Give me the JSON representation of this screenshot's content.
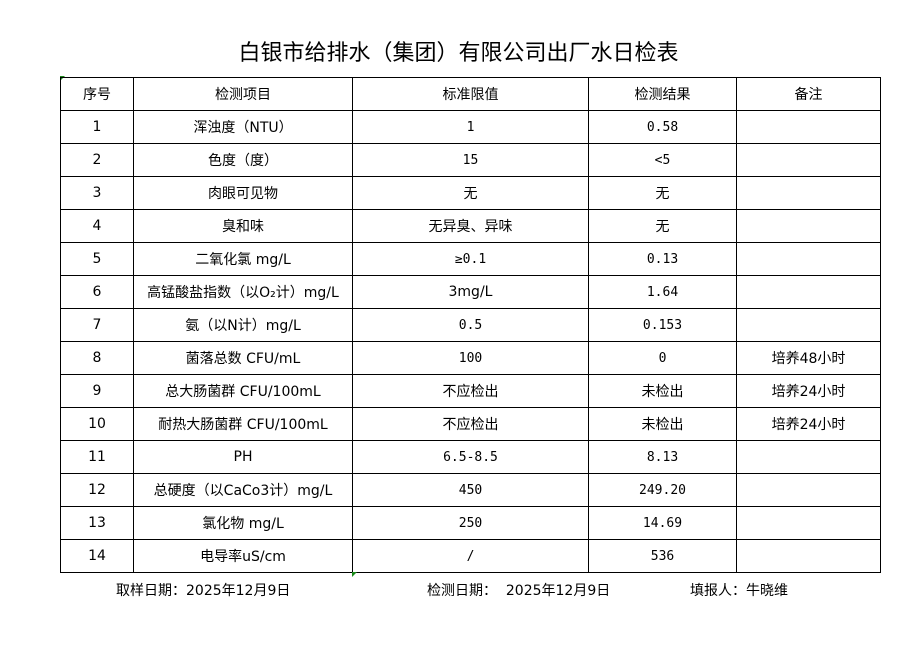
{
  "title": "白银市给排水（集团）有限公司出厂水日检表",
  "headers": [
    "序号",
    "检测项目",
    "标准限值",
    "检测结果",
    "备注"
  ],
  "rows": [
    [
      "1",
      "浑浊度（NTU）",
      "1",
      "0.58",
      ""
    ],
    [
      "2",
      "色度（度）",
      "15",
      "<5",
      ""
    ],
    [
      "3",
      "肉眼可见物",
      "无",
      "无",
      ""
    ],
    [
      "4",
      "臭和味",
      "无异臭、异味",
      "无",
      ""
    ],
    [
      "5",
      "二氧化氯 mg/L",
      "≥0.1",
      "0.13",
      ""
    ],
    [
      "6",
      "高锰酸盐指数（以O₂计）mg/L",
      "3mg/L",
      "1.64",
      ""
    ],
    [
      "7",
      "氨（以N计）mg/L",
      "0.5",
      "0.153",
      ""
    ],
    [
      "8",
      "菌落总数 CFU/mL",
      "100",
      "0",
      "培养48小时"
    ],
    [
      "9",
      "总大肠菌群 CFU/100mL",
      "不应检出",
      "未检出",
      "培养24小时"
    ],
    [
      "10",
      "耐热大肠菌群 CFU/100mL",
      "不应检出",
      "未检出",
      "培养24小时"
    ],
    [
      "11",
      "PH",
      "6.5-8.5",
      "8.13",
      ""
    ],
    [
      "12",
      "总硬度（以CaCo3计）mg/L",
      "450",
      "249.20",
      ""
    ],
    [
      "13",
      "氯化物 mg/L",
      "250",
      "14.69",
      ""
    ],
    [
      "14",
      "电导率uS/cm",
      "/",
      "536",
      ""
    ]
  ],
  "footer": {
    "sample_date": "取样日期：2025年12月9日",
    "test_date": "检测日期：  2025年12月9日",
    "reporter": "填报人：牛晓维"
  }
}
